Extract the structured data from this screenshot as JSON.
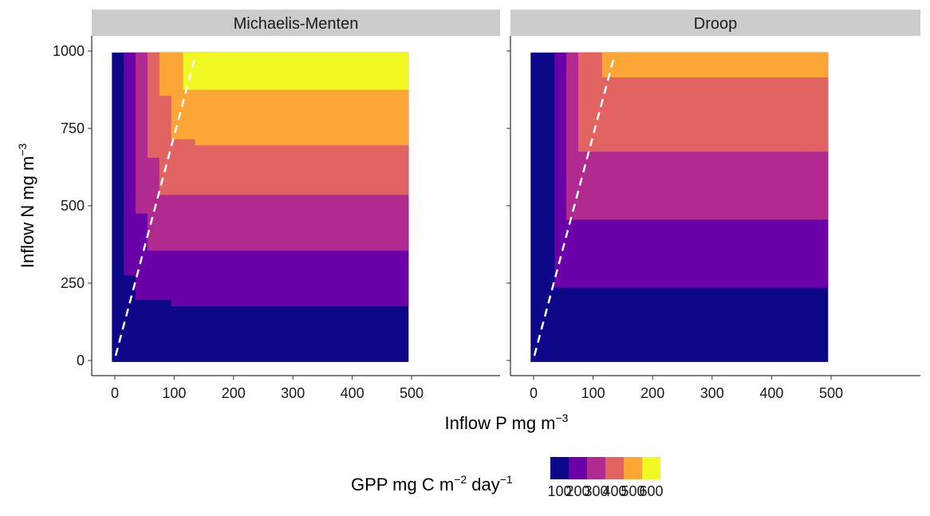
{
  "chart_data": [
    {
      "type": "heatmap",
      "panel": "Michaelis-Menten",
      "xlim": [
        0,
        500
      ],
      "ylim": [
        0,
        1000
      ],
      "x_ticks": [
        0,
        100,
        200,
        300,
        400,
        500
      ],
      "y_ticks": [
        0,
        250,
        500,
        750,
        1000
      ],
      "regions": [
        {
          "level": 100,
          "vertices": [
            [
              0,
              0
            ],
            [
              500,
              0
            ],
            [
              500,
              1000
            ],
            [
              0,
              1000
            ]
          ]
        },
        {
          "level": 200,
          "vertices": [
            [
              15,
              1000
            ],
            [
              15,
              275
            ],
            [
              35,
              275
            ],
            [
              35,
              195
            ],
            [
              95,
              195
            ],
            [
              95,
              175
            ],
            [
              500,
              175
            ],
            [
              500,
              1000
            ]
          ]
        },
        {
          "level": 300,
          "vertices": [
            [
              35,
              1000
            ],
            [
              35,
              475
            ],
            [
              55,
              475
            ],
            [
              55,
              355
            ],
            [
              500,
              355
            ],
            [
              500,
              1000
            ]
          ]
        },
        {
          "level": 400,
          "vertices": [
            [
              55,
              1000
            ],
            [
              55,
              655
            ],
            [
              75,
              655
            ],
            [
              75,
              535
            ],
            [
              500,
              535
            ],
            [
              500,
              1000
            ]
          ]
        },
        {
          "level": 500,
          "vertices": [
            [
              75,
              1000
            ],
            [
              75,
              855
            ],
            [
              95,
              855
            ],
            [
              95,
              715
            ],
            [
              135,
              715
            ],
            [
              135,
              695
            ],
            [
              500,
              695
            ],
            [
              500,
              1000
            ]
          ]
        },
        {
          "level": 600,
          "vertices": [
            [
              115,
              1000
            ],
            [
              115,
              875
            ],
            [
              500,
              875
            ],
            [
              500,
              1000
            ]
          ]
        }
      ],
      "dashed_line": {
        "from": [
          0,
          0
        ],
        "to": [
          135,
          1000
        ],
        "color": "#ffffff"
      }
    },
    {
      "type": "heatmap",
      "panel": "Droop",
      "xlim": [
        0,
        500
      ],
      "ylim": [
        0,
        1000
      ],
      "x_ticks": [
        0,
        100,
        200,
        300,
        400,
        500
      ],
      "y_ticks": [
        0,
        250,
        500,
        750,
        1000
      ],
      "regions": [
        {
          "level": 100,
          "vertices": [
            [
              0,
              0
            ],
            [
              500,
              0
            ],
            [
              500,
              1000
            ],
            [
              0,
              1000
            ]
          ]
        },
        {
          "level": 200,
          "vertices": [
            [
              35,
              1000
            ],
            [
              35,
              235
            ],
            [
              500,
              235
            ],
            [
              500,
              1000
            ]
          ]
        },
        {
          "level": 300,
          "vertices": [
            [
              55,
              1000
            ],
            [
              55,
              455
            ],
            [
              500,
              455
            ],
            [
              500,
              1000
            ]
          ]
        },
        {
          "level": 400,
          "vertices": [
            [
              75,
              1000
            ],
            [
              75,
              675
            ],
            [
              500,
              675
            ],
            [
              500,
              1000
            ]
          ]
        },
        {
          "level": 500,
          "vertices": [
            [
              115,
              1000
            ],
            [
              115,
              915
            ],
            [
              500,
              915
            ],
            [
              500,
              1000
            ]
          ]
        }
      ],
      "dashed_line": {
        "from": [
          0,
          0
        ],
        "to": [
          135,
          1000
        ],
        "color": "#ffffff"
      }
    }
  ],
  "facets": [
    "Michaelis-Menten",
    "Droop"
  ],
  "axes": {
    "xlabel_main": "Inflow P mg m",
    "xlabel_sup": "−3",
    "ylabel_main": "Inflow N mg m",
    "ylabel_sup": "−3"
  },
  "legend": {
    "title_parts": [
      "GPP mg C m",
      "−2",
      " day",
      "−1"
    ],
    "position": "bottom",
    "levels": [
      100,
      200,
      300,
      400,
      500,
      600
    ],
    "labels": [
      "100",
      "200",
      "300",
      "400",
      "500",
      "600"
    ],
    "colors": [
      "#0d0887",
      "#6a00a8",
      "#b12a90",
      "#e16462",
      "#fca636",
      "#f0f921"
    ]
  }
}
